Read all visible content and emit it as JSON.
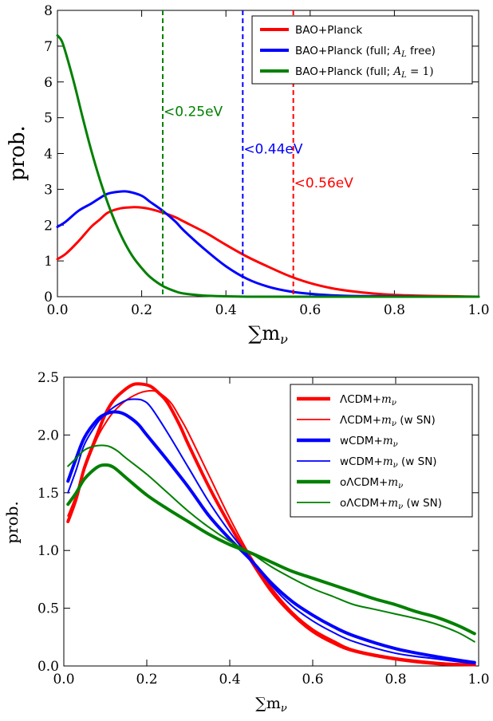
{
  "chart_data": [
    {
      "type": "line",
      "xlabel": "Σm_ν",
      "ylabel": "prob.",
      "xlim": [
        0.0,
        1.0
      ],
      "ylim": [
        0,
        8
      ],
      "xticks": [
        "0.0",
        "0.2",
        "0.4",
        "0.6",
        "0.8",
        "1.0"
      ],
      "yticks": [
        "0",
        "1",
        "2",
        "3",
        "4",
        "5",
        "6",
        "7",
        "8"
      ],
      "legend_position": "top-right",
      "series": [
        {
          "name": "BAO+Planck",
          "color": "#ff0000",
          "width": 3,
          "x": [
            0.0,
            0.02,
            0.05,
            0.08,
            0.1,
            0.12,
            0.15,
            0.18,
            0.2,
            0.22,
            0.25,
            0.28,
            0.3,
            0.35,
            0.4,
            0.45,
            0.5,
            0.55,
            0.6,
            0.65,
            0.7,
            0.75,
            0.8,
            0.85,
            0.9,
            0.95,
            1.0
          ],
          "y": [
            1.05,
            1.2,
            1.55,
            1.95,
            2.15,
            2.35,
            2.47,
            2.5,
            2.49,
            2.45,
            2.35,
            2.22,
            2.1,
            1.8,
            1.45,
            1.12,
            0.84,
            0.58,
            0.38,
            0.24,
            0.15,
            0.09,
            0.05,
            0.03,
            0.02,
            0.01,
            0.0
          ]
        },
        {
          "name": "BAO+Planck (full; A_L free)",
          "color": "#0000ff",
          "width": 3,
          "x": [
            0.0,
            0.02,
            0.05,
            0.08,
            0.1,
            0.12,
            0.15,
            0.17,
            0.2,
            0.22,
            0.25,
            0.28,
            0.3,
            0.35,
            0.4,
            0.45,
            0.5,
            0.55,
            0.6,
            0.65,
            0.7,
            0.8,
            0.9,
            1.0
          ],
          "y": [
            1.95,
            2.1,
            2.4,
            2.6,
            2.75,
            2.88,
            2.94,
            2.93,
            2.82,
            2.65,
            2.4,
            2.1,
            1.85,
            1.32,
            0.85,
            0.5,
            0.28,
            0.15,
            0.08,
            0.04,
            0.02,
            0.01,
            0.0,
            0.0
          ]
        },
        {
          "name": "BAO+Planck (full; A_L = 1)",
          "color": "#008000",
          "width": 3,
          "x": [
            0.0,
            0.01,
            0.02,
            0.04,
            0.06,
            0.08,
            0.1,
            0.12,
            0.14,
            0.16,
            0.18,
            0.2,
            0.22,
            0.25,
            0.28,
            0.3,
            0.35,
            0.4,
            0.45,
            0.5,
            0.6,
            0.8,
            1.0
          ],
          "y": [
            7.3,
            7.15,
            6.8,
            5.95,
            5.0,
            4.1,
            3.3,
            2.6,
            2.0,
            1.5,
            1.1,
            0.8,
            0.55,
            0.3,
            0.15,
            0.09,
            0.03,
            0.01,
            0.0,
            0.0,
            0.0,
            0.0,
            0.0
          ]
        }
      ],
      "vlines": [
        {
          "x": 0.25,
          "color": "#008000",
          "label": "<0.25eV",
          "label_y": 5.05
        },
        {
          "x": 0.44,
          "color": "#0000ff",
          "label": "<0.44eV",
          "label_y": 4.0
        },
        {
          "x": 0.56,
          "color": "#ff0000",
          "label": "<0.56eV",
          "label_y": 3.05
        }
      ]
    },
    {
      "type": "line",
      "xlabel": "∑m_ν",
      "ylabel": "prob.",
      "xlim": [
        0.0,
        1.0
      ],
      "ylim": [
        0.0,
        2.5
      ],
      "xticks": [
        "0.0",
        "0.2",
        "0.4",
        "0.6",
        "0.8",
        "1.0"
      ],
      "yticks": [
        "0.0",
        "0.5",
        "1.0",
        "1.5",
        "2.0",
        "2.5"
      ],
      "legend_position": "top-right",
      "series": [
        {
          "name": "ΛCDM+m_ν",
          "color": "#ff0000",
          "width": 4,
          "x": [
            0.01,
            0.03,
            0.05,
            0.08,
            0.1,
            0.12,
            0.15,
            0.17,
            0.19,
            0.21,
            0.23,
            0.25,
            0.28,
            0.3,
            0.35,
            0.4,
            0.45,
            0.5,
            0.55,
            0.6,
            0.65,
            0.7,
            0.8,
            0.9,
            0.99
          ],
          "y": [
            1.25,
            1.45,
            1.72,
            2.0,
            2.18,
            2.3,
            2.4,
            2.44,
            2.44,
            2.42,
            2.36,
            2.28,
            2.08,
            1.92,
            1.55,
            1.22,
            0.92,
            0.65,
            0.45,
            0.3,
            0.2,
            0.13,
            0.06,
            0.02,
            0.01
          ]
        },
        {
          "name": "ΛCDM+m_ν (w SN)",
          "color": "#ff0000",
          "width": 2,
          "x": [
            0.01,
            0.03,
            0.05,
            0.08,
            0.1,
            0.12,
            0.15,
            0.18,
            0.2,
            0.22,
            0.24,
            0.26,
            0.28,
            0.3,
            0.35,
            0.4,
            0.45,
            0.5,
            0.55,
            0.6,
            0.65,
            0.7,
            0.8,
            0.9,
            0.99
          ],
          "y": [
            1.3,
            1.48,
            1.7,
            1.97,
            2.1,
            2.2,
            2.3,
            2.36,
            2.38,
            2.38,
            2.34,
            2.27,
            2.15,
            2.02,
            1.65,
            1.28,
            0.95,
            0.68,
            0.47,
            0.32,
            0.22,
            0.14,
            0.07,
            0.03,
            0.01
          ]
        },
        {
          "name": "wCDM+m_ν",
          "color": "#0000ff",
          "width": 4,
          "x": [
            0.01,
            0.03,
            0.05,
            0.08,
            0.1,
            0.12,
            0.14,
            0.16,
            0.18,
            0.2,
            0.25,
            0.3,
            0.35,
            0.4,
            0.45,
            0.5,
            0.55,
            0.6,
            0.65,
            0.7,
            0.8,
            0.9,
            0.99
          ],
          "y": [
            1.6,
            1.8,
            1.98,
            2.13,
            2.18,
            2.2,
            2.19,
            2.15,
            2.09,
            2.0,
            1.78,
            1.55,
            1.3,
            1.1,
            0.92,
            0.72,
            0.56,
            0.44,
            0.34,
            0.26,
            0.15,
            0.08,
            0.03
          ]
        },
        {
          "name": "wCDM+m_ν (w SN)",
          "color": "#0000ff",
          "width": 2,
          "x": [
            0.01,
            0.03,
            0.05,
            0.08,
            0.1,
            0.12,
            0.15,
            0.17,
            0.19,
            0.21,
            0.25,
            0.3,
            0.35,
            0.4,
            0.45,
            0.5,
            0.55,
            0.6,
            0.65,
            0.7,
            0.8,
            0.9,
            0.99
          ],
          "y": [
            1.5,
            1.7,
            1.92,
            2.1,
            2.18,
            2.24,
            2.3,
            2.31,
            2.3,
            2.24,
            2.02,
            1.72,
            1.42,
            1.16,
            0.93,
            0.7,
            0.52,
            0.39,
            0.29,
            0.21,
            0.11,
            0.06,
            0.02
          ]
        },
        {
          "name": "oΛCDM+m_ν",
          "color": "#008000",
          "width": 4,
          "x": [
            0.01,
            0.03,
            0.05,
            0.08,
            0.1,
            0.12,
            0.15,
            0.2,
            0.25,
            0.3,
            0.35,
            0.4,
            0.45,
            0.5,
            0.55,
            0.6,
            0.65,
            0.7,
            0.75,
            0.8,
            0.85,
            0.9,
            0.95,
            0.99
          ],
          "y": [
            1.4,
            1.5,
            1.62,
            1.72,
            1.74,
            1.72,
            1.63,
            1.48,
            1.36,
            1.25,
            1.14,
            1.05,
            0.98,
            0.9,
            0.82,
            0.76,
            0.7,
            0.64,
            0.58,
            0.53,
            0.47,
            0.42,
            0.35,
            0.28
          ]
        },
        {
          "name": "oΛCDM+m_ν (w SN)",
          "color": "#008000",
          "width": 2,
          "x": [
            0.01,
            0.03,
            0.05,
            0.07,
            0.09,
            0.11,
            0.13,
            0.15,
            0.2,
            0.25,
            0.3,
            0.35,
            0.4,
            0.45,
            0.5,
            0.55,
            0.6,
            0.65,
            0.7,
            0.75,
            0.8,
            0.85,
            0.9,
            0.95,
            0.99
          ],
          "y": [
            1.73,
            1.8,
            1.87,
            1.9,
            1.91,
            1.9,
            1.86,
            1.8,
            1.66,
            1.5,
            1.34,
            1.2,
            1.08,
            0.98,
            0.86,
            0.76,
            0.67,
            0.6,
            0.53,
            0.49,
            0.45,
            0.41,
            0.36,
            0.29,
            0.21
          ]
        }
      ]
    }
  ]
}
